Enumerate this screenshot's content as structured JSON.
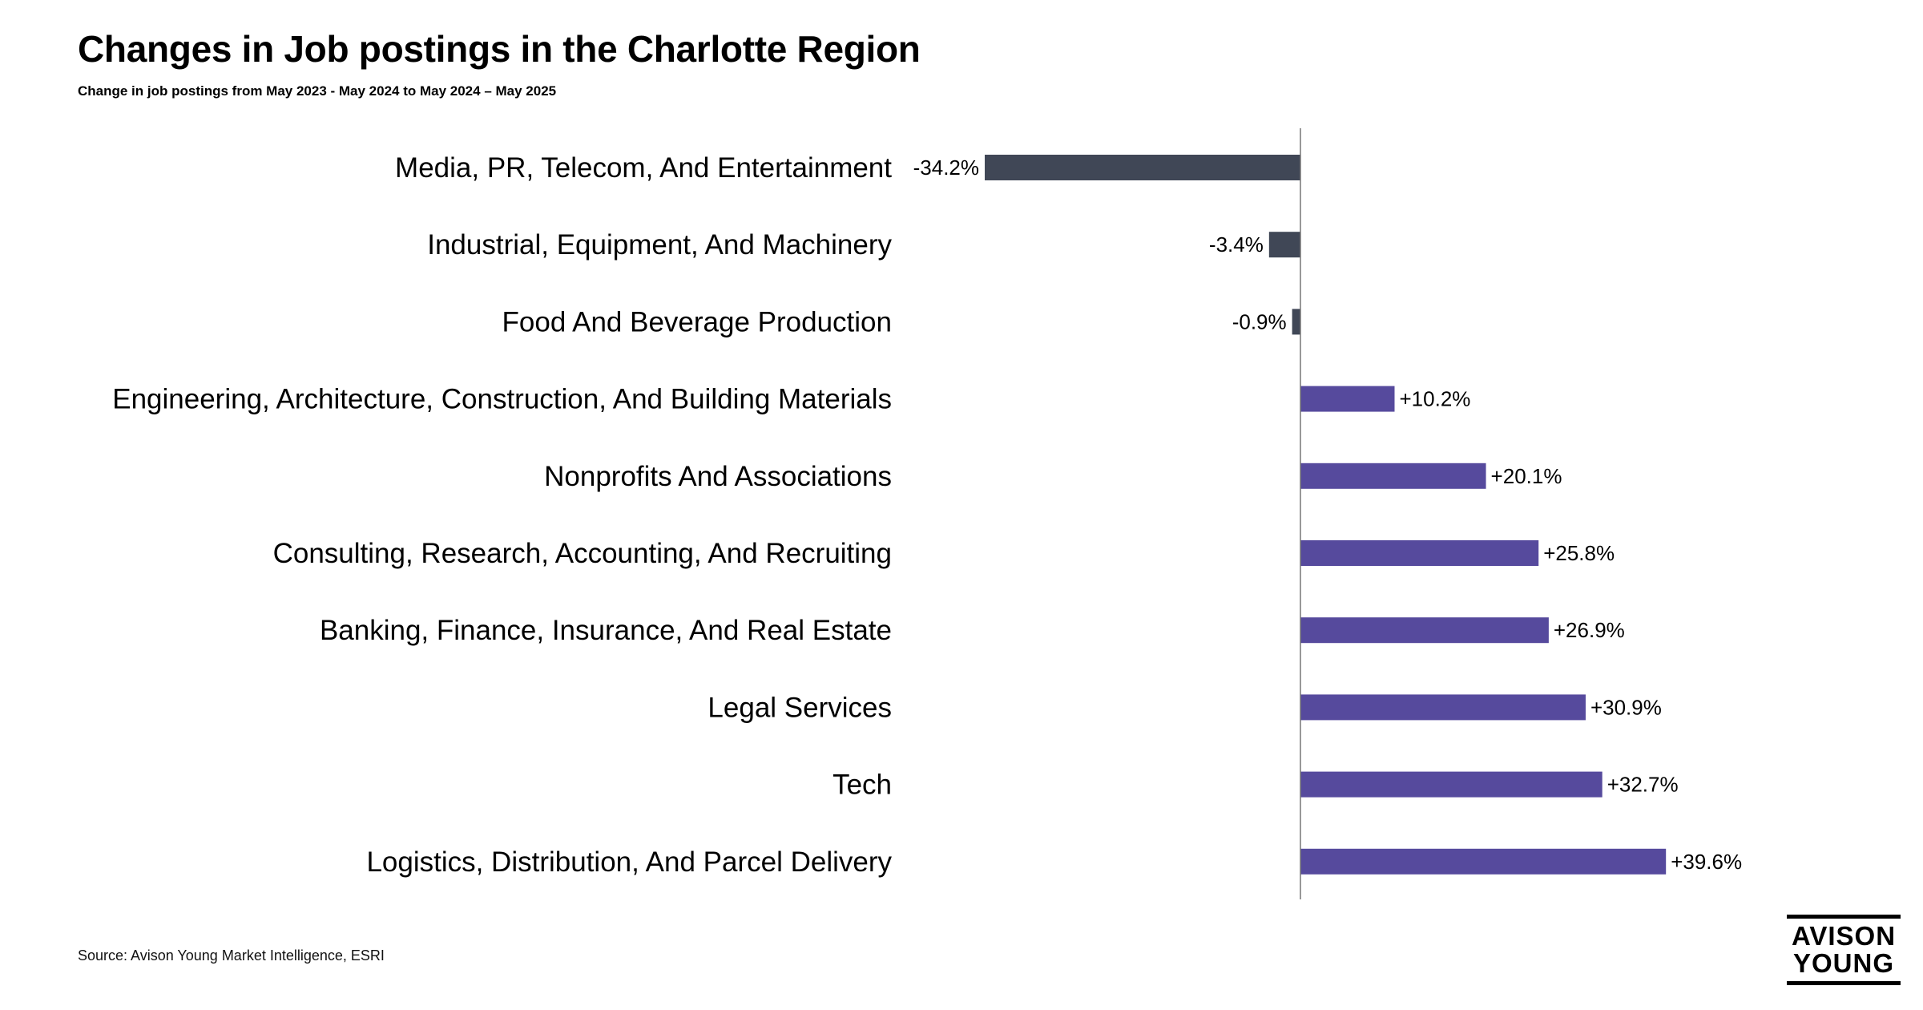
{
  "title": "Changes in Job postings in the Charlotte Region",
  "subtitle": "Change in job postings from May 2023 - May 2024 to May 2024 – May 2025",
  "source": "Source: Avison Young Market Intelligence, ESRI",
  "logo": {
    "line1": "AVISON",
    "line2": "YOUNG"
  },
  "colors": {
    "negative": "#404756",
    "positive": "#564A9D",
    "axis": "#777777",
    "text": "#000000"
  },
  "chart_data": {
    "type": "bar",
    "orientation": "horizontal",
    "title": "Changes in Job postings in the Charlotte Region",
    "xlabel": "",
    "ylabel": "",
    "units": "percent change",
    "categories": [
      "Media, PR, Telecom, And Entertainment",
      "Industrial, Equipment, And Machinery",
      "Food And Beverage Production",
      "Engineering, Architecture, Construction, And Building Materials",
      "Nonprofits And Associations",
      "Consulting, Research, Accounting, And Recruiting",
      "Banking, Finance, Insurance, And Real Estate",
      "Legal Services",
      "Tech",
      "Logistics, Distribution, And Parcel Delivery"
    ],
    "values": [
      -34.2,
      -3.4,
      -0.9,
      10.2,
      20.1,
      25.8,
      26.9,
      30.9,
      32.7,
      39.6
    ],
    "data_labels": [
      "-34.2%",
      "-3.4%",
      "-0.9%",
      "+10.2%",
      "+20.1%",
      "+25.8%",
      "+26.9%",
      "+30.9%",
      "+32.7%",
      "+39.6%"
    ],
    "grid": false,
    "legend": "none"
  }
}
